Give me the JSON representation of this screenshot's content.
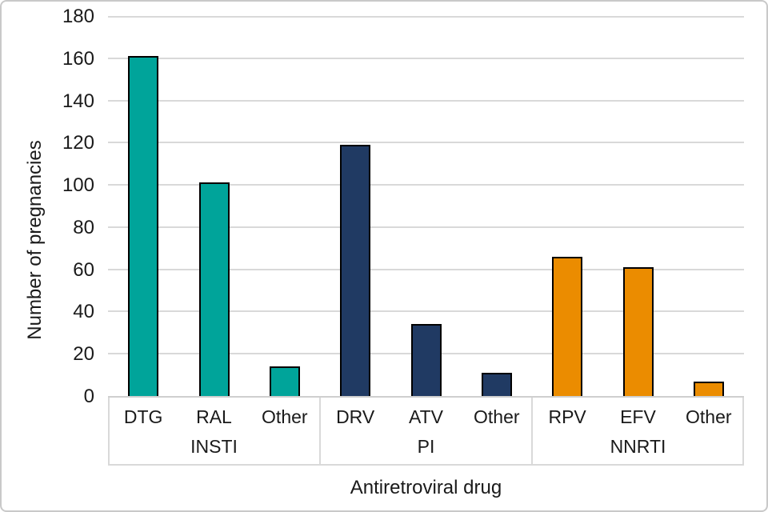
{
  "chart_data": {
    "type": "bar",
    "title": "",
    "xlabel": "Antiretroviral drug",
    "ylabel": "Number of pregnancies",
    "ylim": [
      0,
      180
    ],
    "yticks": [
      0,
      20,
      40,
      60,
      80,
      100,
      120,
      140,
      160,
      180
    ],
    "grid": true,
    "legend": false,
    "categories": [
      "DTG",
      "RAL",
      "Other",
      "DRV",
      "ATV",
      "Other",
      "RPV",
      "EFV",
      "Other"
    ],
    "values": [
      161,
      101,
      14,
      119,
      34,
      11,
      66,
      61,
      7
    ],
    "groups": [
      {
        "label": "INSTI",
        "color": "#00A49A",
        "bars": [
          {
            "label": "DTG",
            "value": 161
          },
          {
            "label": "RAL",
            "value": 101
          },
          {
            "label": "Other",
            "value": 14
          }
        ]
      },
      {
        "label": "PI",
        "color": "#203A63",
        "bars": [
          {
            "label": "DRV",
            "value": 119
          },
          {
            "label": "ATV",
            "value": 34
          },
          {
            "label": "Other",
            "value": 11
          }
        ]
      },
      {
        "label": "NNRTI",
        "color": "#EB8C00",
        "bars": [
          {
            "label": "RPV",
            "value": 66
          },
          {
            "label": "EFV",
            "value": 61
          },
          {
            "label": "Other",
            "value": 7
          }
        ]
      }
    ],
    "colors": {
      "bar_border": "#000000",
      "gridline": "#D9D9D9",
      "axis_line": "#CFCFCF",
      "text": "#1A1A1A",
      "frame_border": "#C9C9C9",
      "background": "#FFFFFF"
    }
  }
}
